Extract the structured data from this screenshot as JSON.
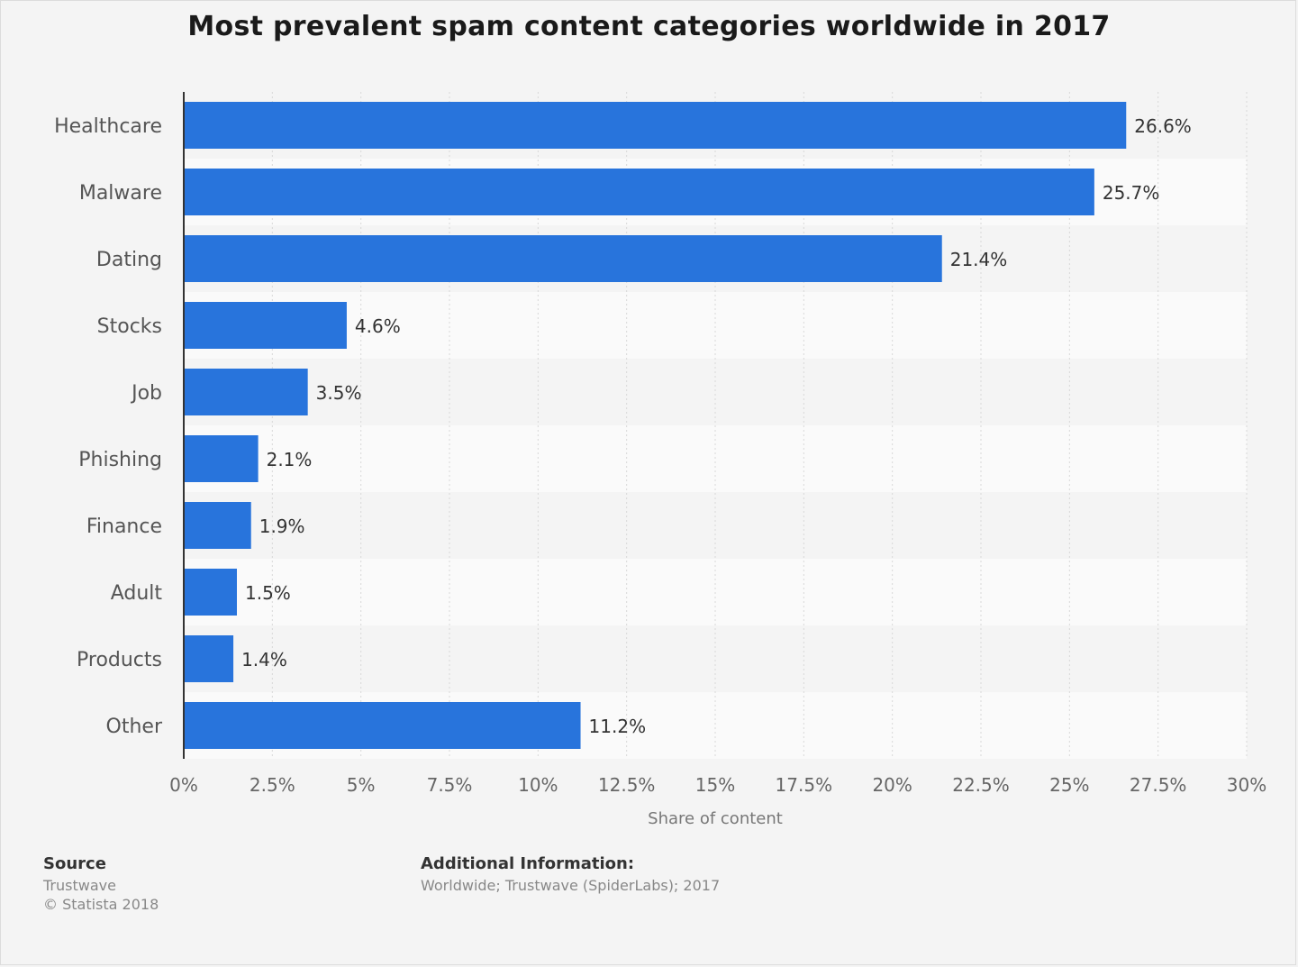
{
  "chart_data": {
    "type": "bar",
    "orientation": "horizontal",
    "title": "Most prevalent spam content categories worldwide in 2017",
    "xlabel": "Share of content",
    "ylabel": "",
    "categories": [
      "Healthcare",
      "Malware",
      "Dating",
      "Stocks",
      "Job",
      "Phishing",
      "Finance",
      "Adult",
      "Products",
      "Other"
    ],
    "values": [
      26.6,
      25.7,
      21.4,
      4.6,
      3.5,
      2.1,
      1.9,
      1.5,
      1.4,
      11.2
    ],
    "value_labels": [
      "26.6%",
      "25.7%",
      "21.4%",
      "4.6%",
      "3.5%",
      "2.1%",
      "1.9%",
      "1.5%",
      "1.4%",
      "11.2%"
    ],
    "xlim": [
      0,
      30
    ],
    "xticks": [
      0,
      2.5,
      5,
      7.5,
      10,
      12.5,
      15,
      17.5,
      20,
      22.5,
      25,
      27.5,
      30
    ],
    "xtick_labels": [
      "0%",
      "2.5%",
      "5%",
      "7.5%",
      "10%",
      "12.5%",
      "15%",
      "17.5%",
      "20%",
      "22.5%",
      "25%",
      "27.5%",
      "30%"
    ],
    "grid": true,
    "bar_color": "#2874dc"
  },
  "footer": {
    "source_heading": "Source",
    "source_name": "Trustwave",
    "copyright": "© Statista 2018",
    "info_heading": "Additional Information:",
    "info_text": "Worldwide; Trustwave (SpiderLabs); 2017"
  }
}
